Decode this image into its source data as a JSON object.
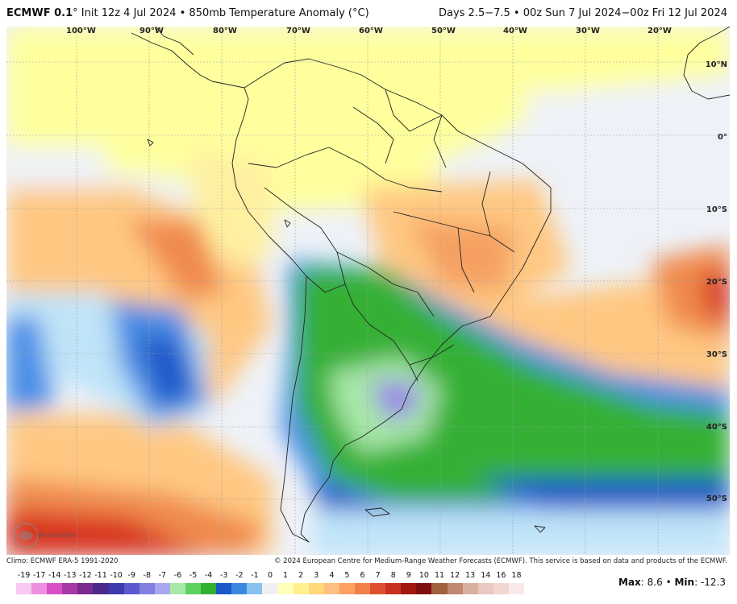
{
  "header": {
    "model": "ECMWF 0.1",
    "degree": "°",
    "description": " Init 12z 4 Jul 2024 • 850mb Temperature Anomaly (°C)",
    "valid": "Days 2.5−7.5 • 00z Sun 7 Jul 2024−00z Fri 12 Jul 2024"
  },
  "axes": {
    "longitudes": [
      "100°W",
      "90°W",
      "80°W",
      "70°W",
      "60°W",
      "50°W",
      "40°W",
      "30°W",
      "20°W"
    ],
    "latitudes": [
      "10°N",
      "0°",
      "10°S",
      "20°S",
      "30°S",
      "40°S",
      "50°S"
    ]
  },
  "footer": {
    "climo": "Climo: ECMWF ERA-5 1991-2020",
    "copyright": "© 2024 European Centre for Medium-Range Weather Forecasts (ECMWF). This service is based on data and products of the ECMWF."
  },
  "colorbar": {
    "ticks": [
      "-19",
      "-17",
      "-14",
      "-13",
      "-12",
      "-11",
      "-10",
      "-9",
      "-8",
      "-7",
      "-6",
      "-5",
      "-4",
      "-3",
      "-2",
      "-1",
      "0",
      "1",
      "2",
      "3",
      "4",
      "5",
      "6",
      "7",
      "8",
      "9",
      "10",
      "11",
      "12",
      "13",
      "14",
      "16",
      "18"
    ],
    "colors": [
      "#f7c8f0",
      "#ee8fe0",
      "#d850c8",
      "#a83aa8",
      "#7a2a90",
      "#4b2a8c",
      "#3c3cb0",
      "#5a5ad0",
      "#8080e0",
      "#a8a8f0",
      "#a8e8a8",
      "#60d060",
      "#30b030",
      "#1a58c8",
      "#3a88e0",
      "#88c0f0",
      "#f0f0f0",
      "#ffffb8",
      "#fff090",
      "#ffd878",
      "#ffbf80",
      "#ffa060",
      "#f08048",
      "#e05030",
      "#c83020",
      "#a01810",
      "#801010",
      "#a06040",
      "#c08870",
      "#d8b0a0",
      "#e8c8c0",
      "#f0d8d0",
      "#f8e8e8"
    ]
  },
  "stats": {
    "max_label": "Max",
    "max_value": "8.6",
    "separator": "•",
    "min_label": "Min",
    "min_value": "-12.3"
  },
  "logo": {
    "text": "WeatherBell"
  },
  "colors": {
    "near_zero": "#eef2f8",
    "warm_light": "#ffff9e",
    "warm_mid": "#ffc882",
    "warm_strong": "#f08a4e",
    "warm_extreme": "#d8301c",
    "cold_light": "#bfe4f8",
    "cold_mid": "#4a8ee6",
    "cold_strong": "#1e58c8",
    "cold_green": "#34b034",
    "cold_green_light": "#a8e8a8",
    "cold_purple": "#9a88e6",
    "border_line": "#222222"
  }
}
